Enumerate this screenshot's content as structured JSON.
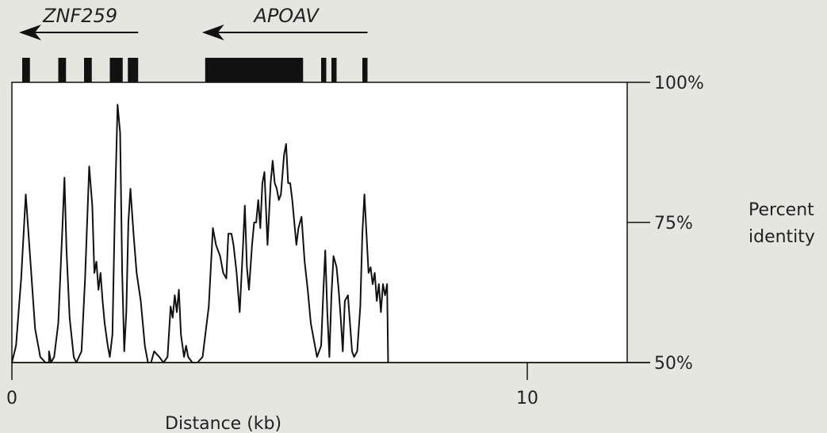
{
  "chart_data": {
    "type": "line",
    "xlabel": "Distance (kb)",
    "ylabel": "Percent identity",
    "xlim": [
      0,
      12
    ],
    "ylim": [
      50,
      100
    ],
    "x_ticks": [
      0,
      10
    ],
    "x_tick_labels": [
      "0",
      "10"
    ],
    "y_ticks": [
      50,
      75,
      100
    ],
    "y_tick_labels": [
      "50%",
      "75%",
      "100%"
    ],
    "grid": false,
    "genes": [
      {
        "name": "ZNF259",
        "direction": "left",
        "arrow_kb": [
          0.2,
          2.45
        ],
        "exons_kb": [
          [
            0.2,
            0.35
          ],
          [
            0.9,
            1.05
          ],
          [
            1.4,
            1.55
          ],
          [
            1.9,
            2.15
          ],
          [
            2.25,
            2.45
          ]
        ]
      },
      {
        "name": "APOAV",
        "direction": "left",
        "arrow_kb": [
          3.75,
          6.9
        ],
        "exons_kb": [
          [
            3.75,
            5.65
          ],
          [
            6.0,
            6.1
          ],
          [
            6.2,
            6.3
          ],
          [
            6.8,
            6.9
          ]
        ]
      }
    ],
    "series": [
      {
        "values": [
          [
            0.0,
            50
          ],
          [
            0.08,
            53
          ],
          [
            0.18,
            65
          ],
          [
            0.27,
            80
          ],
          [
            0.36,
            68
          ],
          [
            0.45,
            56
          ],
          [
            0.55,
            51
          ],
          [
            0.65,
            50
          ],
          [
            0.75,
            50
          ],
          [
            0.72,
            50
          ],
          [
            0.72,
            52
          ],
          [
            0.74,
            51
          ],
          [
            0.76,
            50
          ],
          [
            0.82,
            51
          ],
          [
            0.9,
            57
          ],
          [
            0.98,
            74
          ],
          [
            1.02,
            83
          ],
          [
            1.06,
            70
          ],
          [
            1.12,
            58
          ],
          [
            1.2,
            51
          ],
          [
            1.25,
            50
          ],
          [
            1.35,
            52
          ],
          [
            1.42,
            65
          ],
          [
            1.5,
            85
          ],
          [
            1.56,
            78
          ],
          [
            1.6,
            66
          ],
          [
            1.64,
            68
          ],
          [
            1.68,
            63
          ],
          [
            1.72,
            66
          ],
          [
            1.76,
            61
          ],
          [
            1.8,
            57
          ],
          [
            1.86,
            53
          ],
          [
            1.9,
            51
          ],
          [
            1.95,
            55
          ],
          [
            2.0,
            78
          ],
          [
            2.05,
            96
          ],
          [
            2.1,
            91
          ],
          [
            2.14,
            66
          ],
          [
            2.18,
            52
          ],
          [
            2.22,
            59
          ],
          [
            2.26,
            75
          ],
          [
            2.3,
            81
          ],
          [
            2.36,
            73
          ],
          [
            2.42,
            66
          ],
          [
            2.5,
            61
          ],
          [
            2.58,
            53
          ],
          [
            2.64,
            50
          ],
          [
            2.7,
            50
          ],
          [
            2.76,
            52
          ],
          [
            2.86,
            51
          ],
          [
            2.94,
            50
          ],
          [
            3.02,
            51
          ],
          [
            3.08,
            60
          ],
          [
            3.12,
            58
          ],
          [
            3.16,
            62
          ],
          [
            3.2,
            59
          ],
          [
            3.24,
            63
          ],
          [
            3.28,
            55
          ],
          [
            3.34,
            51
          ],
          [
            3.38,
            53
          ],
          [
            3.42,
            51
          ],
          [
            3.5,
            50
          ],
          [
            3.6,
            50
          ],
          [
            3.7,
            51
          ],
          [
            3.82,
            60
          ],
          [
            3.9,
            74
          ],
          [
            3.96,
            71
          ],
          [
            4.04,
            69
          ],
          [
            4.1,
            66
          ],
          [
            4.16,
            65
          ],
          [
            4.2,
            73
          ],
          [
            4.26,
            73
          ],
          [
            4.3,
            71
          ],
          [
            4.36,
            66
          ],
          [
            4.42,
            59
          ],
          [
            4.48,
            70
          ],
          [
            4.52,
            78
          ],
          [
            4.56,
            67
          ],
          [
            4.6,
            63
          ],
          [
            4.66,
            71
          ],
          [
            4.7,
            75
          ],
          [
            4.74,
            75
          ],
          [
            4.78,
            79
          ],
          [
            4.82,
            74
          ],
          [
            4.86,
            82
          ],
          [
            4.9,
            84
          ],
          [
            4.96,
            71
          ],
          [
            5.02,
            82
          ],
          [
            5.06,
            86
          ],
          [
            5.1,
            82
          ],
          [
            5.14,
            81
          ],
          [
            5.18,
            79
          ],
          [
            5.22,
            80
          ],
          [
            5.28,
            87
          ],
          [
            5.32,
            89
          ],
          [
            5.36,
            82
          ],
          [
            5.4,
            82
          ],
          [
            5.44,
            79
          ],
          [
            5.48,
            75
          ],
          [
            5.52,
            71
          ],
          [
            5.56,
            74
          ],
          [
            5.62,
            76
          ],
          [
            5.68,
            68
          ],
          [
            5.74,
            63
          ],
          [
            5.8,
            57
          ],
          [
            5.86,
            54
          ],
          [
            5.92,
            51
          ],
          [
            6.0,
            53
          ],
          [
            6.04,
            62
          ],
          [
            6.08,
            70
          ],
          [
            6.12,
            59
          ],
          [
            6.16,
            51
          ],
          [
            6.2,
            62
          ],
          [
            6.24,
            69
          ],
          [
            6.3,
            67
          ],
          [
            6.34,
            63
          ],
          [
            6.38,
            58
          ],
          [
            6.42,
            52
          ],
          [
            6.46,
            61
          ],
          [
            6.52,
            62
          ],
          [
            6.56,
            57
          ],
          [
            6.6,
            52
          ],
          [
            6.64,
            51
          ],
          [
            6.7,
            52
          ],
          [
            6.76,
            60
          ],
          [
            6.8,
            73
          ],
          [
            6.84,
            80
          ],
          [
            6.88,
            73
          ],
          [
            6.92,
            66
          ],
          [
            6.96,
            67
          ],
          [
            7.0,
            64
          ],
          [
            7.04,
            66
          ],
          [
            7.08,
            61
          ],
          [
            7.12,
            64
          ],
          [
            7.16,
            59
          ],
          [
            7.2,
            64
          ],
          [
            7.24,
            62
          ],
          [
            7.28,
            64
          ],
          [
            7.3,
            50
          ]
        ]
      }
    ]
  }
}
